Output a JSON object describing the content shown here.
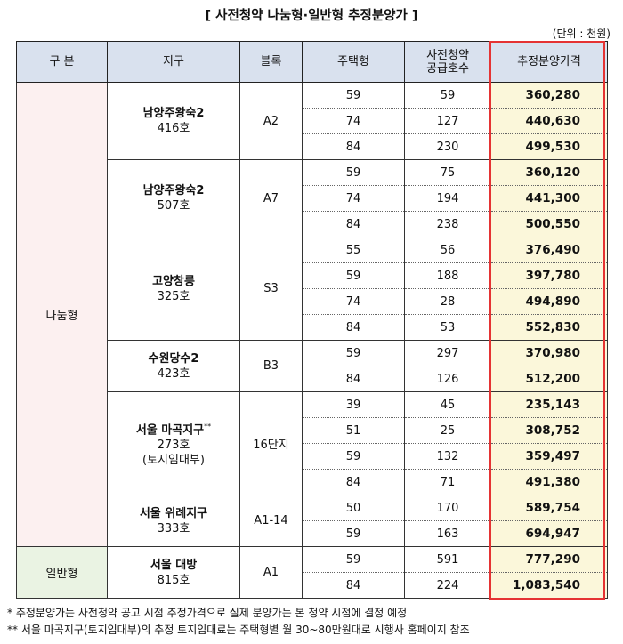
{
  "title": "[ 사전청약 나눔형·일반형 추정분양가 ]",
  "unit": "(단위 : 천원)",
  "headers": {
    "category": "구 분",
    "district": "지구",
    "block": "블록",
    "house_type": "주택형",
    "supply_line1": "사전청약",
    "supply_line2": "공급호수",
    "price": "추정분양가격"
  },
  "categories": {
    "share": "나눔형",
    "general": "일반형"
  },
  "groups": [
    {
      "district": "남양주왕숙2",
      "units": "416호",
      "block": "A2",
      "rows": [
        {
          "type": "59",
          "supply": "59",
          "price": "360,280"
        },
        {
          "type": "74",
          "supply": "127",
          "price": "440,630"
        },
        {
          "type": "84",
          "supply": "230",
          "price": "499,530"
        }
      ]
    },
    {
      "district": "남양주왕숙2",
      "units": "507호",
      "block": "A7",
      "rows": [
        {
          "type": "59",
          "supply": "75",
          "price": "360,120"
        },
        {
          "type": "74",
          "supply": "194",
          "price": "441,300"
        },
        {
          "type": "84",
          "supply": "238",
          "price": "500,550"
        }
      ]
    },
    {
      "district": "고양창릉",
      "units": "325호",
      "block": "S3",
      "rows": [
        {
          "type": "55",
          "supply": "56",
          "price": "376,490"
        },
        {
          "type": "59",
          "supply": "188",
          "price": "397,780"
        },
        {
          "type": "74",
          "supply": "28",
          "price": "494,890"
        },
        {
          "type": "84",
          "supply": "53",
          "price": "552,830"
        }
      ]
    },
    {
      "district": "수원당수2",
      "units": "423호",
      "block": "B3",
      "rows": [
        {
          "type": "59",
          "supply": "297",
          "price": "370,980"
        },
        {
          "type": "84",
          "supply": "126",
          "price": "512,200"
        }
      ]
    },
    {
      "district": "서울 마곡지구",
      "district_mark": "**",
      "units": "273호",
      "note": "(토지임대부)",
      "block": "16단지",
      "rows": [
        {
          "type": "39",
          "supply": "45",
          "price": "235,143"
        },
        {
          "type": "51",
          "supply": "25",
          "price": "308,752"
        },
        {
          "type": "59",
          "supply": "132",
          "price": "359,497"
        },
        {
          "type": "84",
          "supply": "71",
          "price": "491,380"
        }
      ]
    },
    {
      "district": "서울 위례지구",
      "units": "333호",
      "block": "A1-14",
      "rows": [
        {
          "type": "50",
          "supply": "170",
          "price": "589,754"
        },
        {
          "type": "59",
          "supply": "163",
          "price": "694,947"
        }
      ]
    },
    {
      "district": "서울 대방",
      "units": "815호",
      "block": "A1",
      "rows": [
        {
          "type": "59",
          "supply": "591",
          "price": "777,290"
        },
        {
          "type": "84",
          "supply": "224",
          "price": "1,083,540"
        }
      ]
    }
  ],
  "footnotes": [
    " * 추정분양가는 사전청약 공고 시점 추정가격으로 실제 분양가는 본 청약 시점에 결정 예정",
    "** 서울 마곡지구(토지임대부)의 추정 토지임대료는 주택형별 월 30~80만원대로 시행사 홈페이지 참조"
  ]
}
